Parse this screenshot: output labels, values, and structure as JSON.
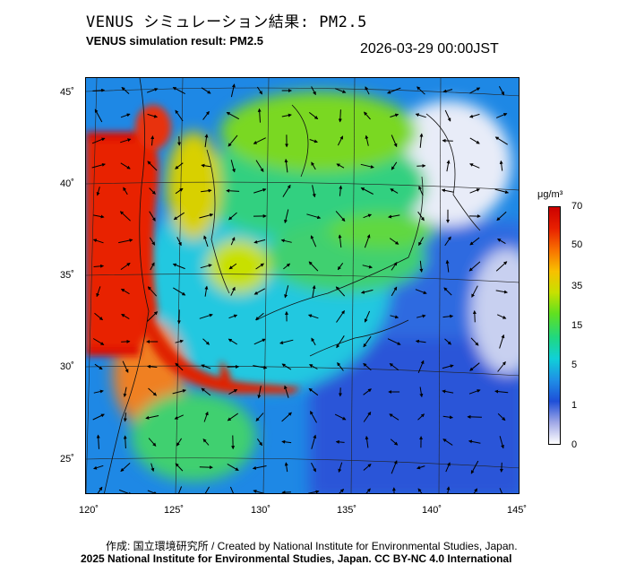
{
  "header": {
    "title_jp": "VENUS シミュレーション結果: PM2.5",
    "title_en": "VENUS simulation result: PM2.5",
    "timestamp": "2026-03-29 00:00JST"
  },
  "map": {
    "lon_labels": [
      "120˚",
      "125˚",
      "130˚",
      "135˚",
      "140˚",
      "145˚"
    ],
    "lat_labels": [
      "45˚",
      "40˚",
      "35˚",
      "30˚",
      "25˚"
    ],
    "lon_range": [
      120,
      145
    ],
    "lat_range": [
      23,
      46
    ]
  },
  "colorbar": {
    "unit": "μg/m³",
    "ticks": [
      "70",
      "50",
      "35",
      "15",
      "5",
      "1",
      "0"
    ],
    "colors": [
      "#ffffff",
      "#a0a8e6",
      "#1e4fd8",
      "#1f8fe6",
      "#10d0d8",
      "#20d880",
      "#60e020",
      "#c8e000",
      "#f8c000",
      "#f87000",
      "#e82000",
      "#cc0000"
    ]
  },
  "footer": {
    "credit": "作成: 国立環境研究所 / Created by National Institute for Environmental Studies, Japan.",
    "copyright": "2025 National Institute for Environmental Studies, Japan. CC BY-NC 4.0 International"
  }
}
